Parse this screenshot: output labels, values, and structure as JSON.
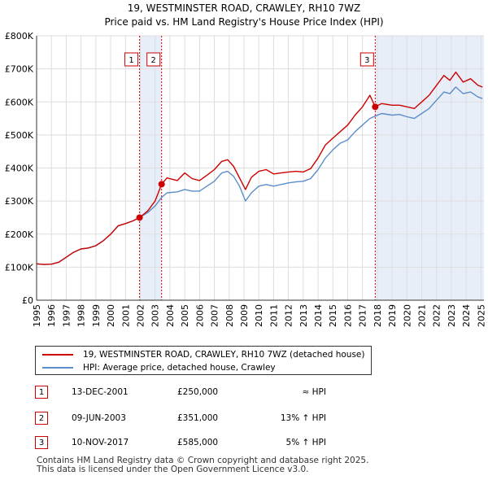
{
  "chart_data": {
    "type": "line",
    "title": "19, WESTMINSTER ROAD, CRAWLEY, RH10 7WZ",
    "subtitle": "Price paid vs. HM Land Registry's House Price Index (HPI)",
    "xlim": [
      1995,
      2025.2
    ],
    "ylim": [
      0,
      800000
    ],
    "x_ticks": [
      1995,
      1996,
      1997,
      1998,
      1999,
      2000,
      2001,
      2002,
      2003,
      2004,
      2005,
      2006,
      2007,
      2008,
      2009,
      2010,
      2011,
      2012,
      2013,
      2014,
      2015,
      2016,
      2017,
      2018,
      2019,
      2020,
      2021,
      2022,
      2023,
      2024,
      2025
    ],
    "x_tick_labels": [
      "1995",
      "1996",
      "1997",
      "1998",
      "1999",
      "2000",
      "2001",
      "2002",
      "2003",
      "2004",
      "2005",
      "2006",
      "2007",
      "2008",
      "2009",
      "2010",
      "2011",
      "2012",
      "2013",
      "2014",
      "2015",
      "2016",
      "2017",
      "2018",
      "2019",
      "2020",
      "2021",
      "2022",
      "2023",
      "2024",
      "2025"
    ],
    "y_ticks": [
      0,
      100000,
      200000,
      300000,
      400000,
      500000,
      600000,
      700000,
      800000
    ],
    "y_tick_labels": [
      "£0",
      "£100K",
      "£200K",
      "£300K",
      "£400K",
      "£500K",
      "£600K",
      "£700K",
      "£800K"
    ],
    "grid": true,
    "colors": {
      "property": "#cc0000",
      "hpi": "#5b8ec9",
      "shade": "#e8eef8",
      "marker": "#cc0000",
      "vline": "#cc0000"
    },
    "series": [
      {
        "name": "19, WESTMINSTER ROAD, CRAWLEY, RH10 7WZ (detached house)",
        "x": [
          1995,
          1995.5,
          1996,
          1996.5,
          1997,
          1997.5,
          1998,
          1998.5,
          1999,
          1999.5,
          2000,
          2000.5,
          2001,
          2001.5,
          2001.95,
          2002.5,
          2003,
          2003.44,
          2003.8,
          2004.5,
          2005,
          2005.5,
          2006,
          2006.5,
          2007,
          2007.5,
          2007.9,
          2008.3,
          2008.7,
          2009.1,
          2009.5,
          2010,
          2010.5,
          2011,
          2011.5,
          2012,
          2012.5,
          2013,
          2013.5,
          2014,
          2014.5,
          2015,
          2015.5,
          2016,
          2016.5,
          2017,
          2017.5,
          2017.86,
          2018.3,
          2019,
          2019.5,
          2020,
          2020.5,
          2021,
          2021.5,
          2022,
          2022.5,
          2022.9,
          2023.3,
          2023.8,
          2024.3,
          2024.8,
          2025.1
        ],
        "values": [
          110000,
          108000,
          109000,
          115000,
          130000,
          145000,
          155000,
          158000,
          165000,
          180000,
          200000,
          225000,
          232000,
          240000,
          250000,
          270000,
          300000,
          351000,
          370000,
          362000,
          385000,
          368000,
          362000,
          378000,
          395000,
          420000,
          425000,
          405000,
          370000,
          335000,
          372000,
          390000,
          395000,
          382000,
          385000,
          388000,
          390000,
          388000,
          398000,
          430000,
          470000,
          490000,
          510000,
          530000,
          560000,
          585000,
          620000,
          585000,
          595000,
          590000,
          590000,
          585000,
          580000,
          600000,
          620000,
          650000,
          680000,
          665000,
          690000,
          660000,
          670000,
          650000,
          645000
        ]
      },
      {
        "name": "HPI: Average price, detached house, Crawley",
        "x": [
          1995,
          1995.5,
          1996,
          1996.5,
          1997,
          1997.5,
          1998,
          1998.5,
          1999,
          1999.5,
          2000,
          2000.5,
          2001,
          2001.5,
          2001.95,
          2002.5,
          2003,
          2003.44,
          2003.8,
          2004.5,
          2005,
          2005.5,
          2006,
          2006.5,
          2007,
          2007.5,
          2007.9,
          2008.3,
          2008.7,
          2009.1,
          2009.5,
          2010,
          2010.5,
          2011,
          2011.5,
          2012,
          2012.5,
          2013,
          2013.5,
          2014,
          2014.5,
          2015,
          2015.5,
          2016,
          2016.5,
          2017,
          2017.5,
          2017.86,
          2018.3,
          2019,
          2019.5,
          2020,
          2020.5,
          2021,
          2021.5,
          2022,
          2022.5,
          2022.9,
          2023.3,
          2023.8,
          2024.3,
          2024.8,
          2025.1
        ],
        "values": [
          110000,
          108000,
          109000,
          115000,
          130000,
          145000,
          155000,
          158000,
          165000,
          180000,
          200000,
          225000,
          232000,
          240000,
          250000,
          265000,
          285000,
          311000,
          325000,
          328000,
          335000,
          330000,
          330000,
          345000,
          360000,
          385000,
          390000,
          375000,
          345000,
          300000,
          325000,
          345000,
          350000,
          345000,
          350000,
          355000,
          358000,
          360000,
          368000,
          395000,
          430000,
          455000,
          475000,
          485000,
          510000,
          530000,
          550000,
          557000,
          565000,
          560000,
          562000,
          555000,
          550000,
          565000,
          580000,
          605000,
          630000,
          625000,
          645000,
          625000,
          630000,
          615000,
          610000
        ]
      }
    ],
    "shaded_ranges": [
      [
        2001.95,
        2003.44
      ],
      [
        2017.86,
        2025.2
      ]
    ],
    "sales": [
      {
        "label": "1",
        "x": 2001.95,
        "y": 250000
      },
      {
        "label": "2",
        "x": 2003.44,
        "y": 351000
      },
      {
        "label": "3",
        "x": 2017.86,
        "y": 585000
      }
    ]
  },
  "legend": {
    "property_label": "19, WESTMINSTER ROAD, CRAWLEY, RH10 7WZ (detached house)",
    "hpi_label": "HPI: Average price, detached house, Crawley"
  },
  "sales_table": [
    {
      "num": "1",
      "date": "13-DEC-2001",
      "price": "£250,000",
      "hpi": "≈ HPI"
    },
    {
      "num": "2",
      "date": "09-JUN-2003",
      "price": "£351,000",
      "hpi": "13% ↑ HPI"
    },
    {
      "num": "3",
      "date": "10-NOV-2017",
      "price": "£585,000",
      "hpi": "5% ↑ HPI"
    }
  ],
  "footer": {
    "line1": "Contains HM Land Registry data © Crown copyright and database right 2025.",
    "line2": "This data is licensed under the Open Government Licence v3.0."
  }
}
